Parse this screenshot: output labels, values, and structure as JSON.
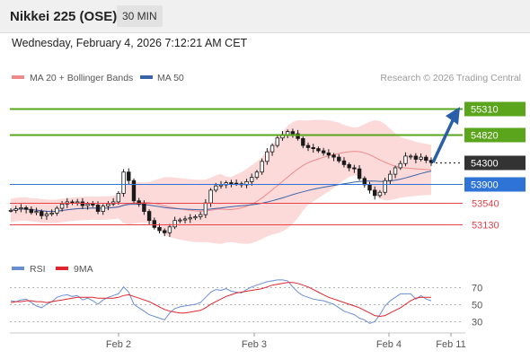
{
  "header": {
    "title": "Nikkei 225 (OSE)",
    "timeframe": "30 MIN"
  },
  "datetime": "Wednesday, February 4, 2026 7:12:21 AM CET",
  "legend": {
    "ma20_label": "MA 20 + Bollinger Bands",
    "ma50_label": "MA 50",
    "credit": "Research © 2026 Trading Central",
    "rsi_label": "RSI",
    "ma9_label": "9MA"
  },
  "colors": {
    "resistance": "#5aa51c",
    "support": "#e8424a",
    "pivot": "#2e73d6",
    "target_arrow": "#2a5ea8",
    "current": "#333333",
    "bollinger_fill": "#fbd4d4",
    "ma20": "#f08a8a",
    "ma50": "#3a64a8",
    "rsi": "#6a8ed6",
    "rsi_ma": "#e0262d",
    "candle": "#1a1a1a"
  },
  "chart_data": [
    {
      "type": "line",
      "title": "Nikkei 225 (OSE)",
      "series_kind": "candlestick",
      "ylim": [
        52800,
        55700
      ],
      "x_ticks": [
        "Feb 2",
        "Feb 3",
        "Feb 4",
        "Feb 11"
      ],
      "levels": [
        {
          "label": "55310",
          "value": 55310,
          "kind": "resistance"
        },
        {
          "label": "54820",
          "value": 54820,
          "kind": "resistance"
        },
        {
          "label": "54300",
          "value": 54300,
          "kind": "current"
        },
        {
          "label": "53900",
          "value": 53900,
          "kind": "pivot"
        },
        {
          "label": "53540",
          "value": 53540,
          "kind": "support"
        },
        {
          "label": "53130",
          "value": 53130,
          "kind": "support"
        }
      ],
      "target": {
        "from": 54300,
        "to": 55310
      },
      "close": [
        53400,
        53430,
        53450,
        53420,
        53360,
        53380,
        53300,
        53330,
        53350,
        53440,
        53520,
        53560,
        53540,
        53560,
        53490,
        53520,
        53500,
        53380,
        53480,
        53520,
        53560,
        53720,
        54120,
        53960,
        53580,
        53520,
        53380,
        53210,
        53080,
        53020,
        52980,
        53090,
        53210,
        53220,
        53240,
        53260,
        53280,
        53320,
        53540,
        53780,
        53860,
        53880,
        53920,
        53910,
        53900,
        53880,
        53940,
        54020,
        54120,
        54320,
        54500,
        54620,
        54760,
        54820,
        54880,
        54840,
        54750,
        54620,
        54580,
        54560,
        54520,
        54480,
        54440,
        54400,
        54330,
        54260,
        54200,
        54180,
        54000,
        53880,
        53780,
        53680,
        53740,
        53960,
        54080,
        54200,
        54280,
        54420,
        54420,
        54360,
        54400,
        54340,
        54300
      ]
    },
    {
      "type": "line",
      "title": "RSI",
      "ylim": [
        20,
        80
      ],
      "y_ticks": [
        30,
        50,
        70
      ],
      "series": [
        {
          "name": "RSI",
          "values": [
            54,
            53,
            55,
            56,
            52,
            48,
            46,
            50,
            53,
            58,
            60,
            61,
            59,
            60,
            55,
            57,
            54,
            50,
            55,
            58,
            60,
            62,
            70,
            64,
            50,
            46,
            42,
            38,
            36,
            34,
            32,
            40,
            45,
            47,
            48,
            49,
            50,
            52,
            58,
            64,
            67,
            66,
            68,
            65,
            64,
            63,
            67,
            70,
            72,
            74,
            76,
            77,
            78,
            78,
            77,
            70,
            64,
            60,
            58,
            56,
            55,
            54,
            52,
            50,
            46,
            42,
            40,
            38,
            34,
            32,
            28,
            30,
            38,
            48,
            54,
            58,
            62,
            62,
            62,
            56,
            60,
            56,
            54
          ]
        },
        {
          "name": "9MA",
          "values": [
            52,
            53,
            53,
            54,
            54,
            53,
            53,
            52,
            53,
            54,
            55,
            56,
            57,
            58,
            58,
            58,
            58,
            57,
            57,
            57,
            57,
            58,
            60,
            61,
            59,
            57,
            55,
            53,
            50,
            47,
            44,
            42,
            41,
            40,
            40,
            41,
            42,
            43,
            46,
            50,
            53,
            56,
            59,
            61,
            63,
            64,
            65,
            66,
            67,
            68,
            70,
            72,
            73,
            74,
            75,
            75,
            74,
            72,
            70,
            67,
            64,
            61,
            58,
            56,
            54,
            52,
            50,
            48,
            46,
            43,
            40,
            37,
            36,
            37,
            40,
            43,
            46,
            50,
            54,
            57,
            58,
            58,
            58
          ]
        }
      ]
    }
  ]
}
